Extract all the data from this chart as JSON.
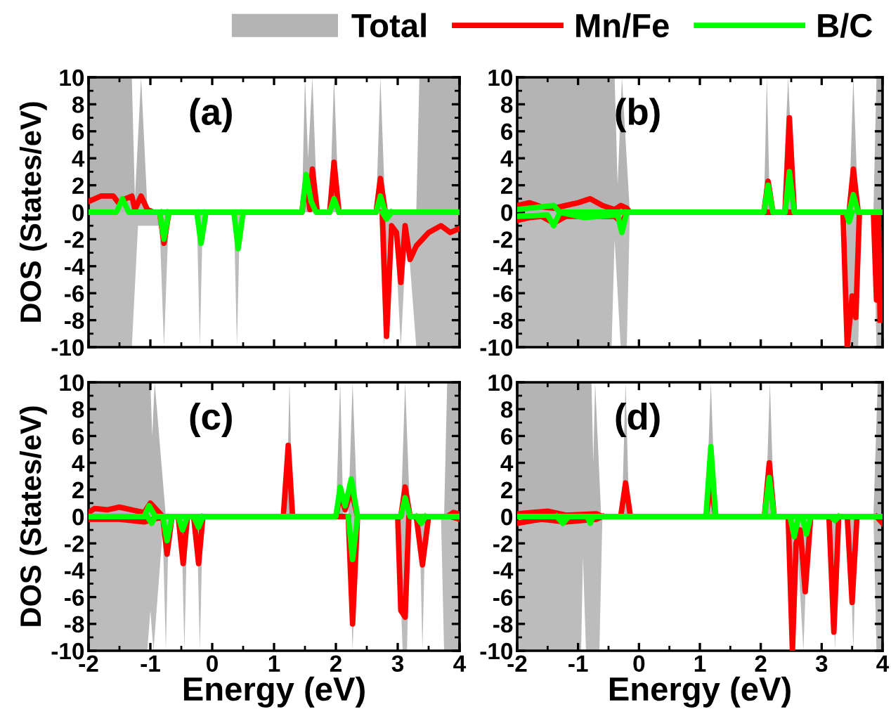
{
  "chart_data": [
    {
      "type": "line",
      "annotations": [
        "(a)"
      ],
      "ylabel": "DOS (States/eV)",
      "xlim": [
        -2,
        4
      ],
      "ylim": [
        -10,
        10
      ],
      "xticks": [
        -2,
        -1,
        0,
        1,
        2,
        3,
        4
      ],
      "yticks": [
        -10,
        -8,
        -6,
        -4,
        -2,
        0,
        2,
        4,
        6,
        8,
        10
      ],
      "tick_labels": "y",
      "legend": "top",
      "grid": false,
      "series": [
        {
          "name": "Total",
          "type": "area",
          "color": "#b4b4b4",
          "x": [
            -2,
            -1.3,
            -1.25,
            -1.15,
            -1.05,
            -0.9,
            1.45,
            1.5,
            1.55,
            1.62,
            1.7,
            1.9,
            1.97,
            2.05,
            2.65,
            2.72,
            2.8,
            3.3,
            3.35,
            4
          ],
          "values": [
            10,
            10,
            1,
            10,
            0.5,
            0,
            0,
            10,
            4,
            10,
            0,
            0,
            10,
            0,
            0,
            10,
            0,
            0,
            10,
            10
          ]
        },
        {
          "type": "area",
          "color": "#bcbcbc",
          "x": [
            -2,
            -1.3,
            -1.2,
            -1.1,
            -0.85,
            -0.78,
            -0.7,
            -0.25,
            -0.2,
            -0.15,
            0.35,
            0.4,
            0.45,
            2.7,
            2.78,
            2.85,
            2.95,
            3.05,
            3.15,
            3.3,
            4
          ],
          "values": [
            -10,
            -10,
            -1,
            -1,
            -1,
            -10,
            0,
            0,
            -10,
            0,
            0,
            -10,
            0,
            0,
            -10,
            -1,
            -1,
            -10,
            -1,
            -10,
            -10
          ]
        },
        {
          "name": "Mn/Fe",
          "color": "#ff0000",
          "x": [
            -2,
            -1.8,
            -1.6,
            -1.5,
            -1.4,
            -1.3,
            -1.25,
            -1.15,
            -1.05,
            -0.95,
            1.45,
            1.52,
            1.58,
            1.62,
            1.7,
            1.9,
            1.97,
            2.05,
            2.65,
            2.72,
            2.8,
            4
          ],
          "values": [
            0.8,
            1.2,
            1.2,
            0.6,
            1.0,
            1.2,
            0.2,
            1.2,
            0.2,
            0,
            0,
            2.5,
            0.2,
            3.2,
            0,
            0,
            3.7,
            0,
            0,
            2.5,
            0,
            0
          ]
        },
        {
          "color": "#ff0000",
          "x": [
            -0.85,
            -0.78,
            -0.7,
            1.0,
            2.75,
            2.82,
            2.9,
            2.98,
            3.05,
            3.12,
            3.2,
            3.3,
            3.5,
            3.7,
            3.85,
            4
          ],
          "values": [
            0,
            -2.3,
            0,
            null,
            0,
            -9.2,
            -1,
            -1.5,
            -5.2,
            -1,
            -3.5,
            -2.5,
            -1.5,
            -1,
            -1.5,
            -1.2
          ]
        },
        {
          "name": "B/C",
          "color": "#00ff00",
          "x": [
            -2,
            -1.55,
            -1.45,
            -1.35,
            1.45,
            1.52,
            1.6,
            1.68,
            1.9,
            1.97,
            2.05,
            2.65,
            2.72,
            2.8,
            4
          ],
          "values": [
            0,
            0,
            1.0,
            0,
            0,
            2.8,
            0.8,
            0,
            0,
            1.0,
            0,
            0,
            1.2,
            0,
            0
          ]
        },
        {
          "color": "#00ff00",
          "x": [
            -0.85,
            -0.78,
            -0.7,
            -0.5,
            -0.25,
            -0.18,
            -0.1,
            0.1,
            0.35,
            0.42,
            0.5,
            1.5,
            2.75,
            2.82,
            2.9
          ],
          "values": [
            0,
            -2.0,
            0,
            null,
            0,
            -2.3,
            0,
            null,
            0,
            -2.7,
            0,
            null,
            0,
            -0.5,
            0
          ]
        }
      ]
    },
    {
      "type": "line",
      "annotations": [
        "(b)"
      ],
      "xlim": [
        -2,
        4
      ],
      "ylim": [
        -10,
        10
      ],
      "xticks": [
        -2,
        -1,
        0,
        1,
        2,
        3,
        4
      ],
      "yticks": [
        -10,
        -8,
        -6,
        -4,
        -2,
        0,
        2,
        4,
        6,
        8,
        10
      ],
      "tick_labels": "y",
      "grid": false,
      "series": [
        {
          "type": "area",
          "color": "#b4b4b4",
          "x": [
            -2,
            -0.4,
            -0.35,
            -0.28,
            -0.15,
            2.05,
            2.1,
            2.15,
            2.35,
            2.45,
            2.55,
            3.45,
            3.52,
            3.6,
            3.85,
            3.9,
            4
          ],
          "values": [
            10,
            10,
            2,
            10,
            0,
            0,
            10,
            0,
            0,
            10,
            0,
            0,
            10,
            0,
            0,
            10,
            10
          ]
        },
        {
          "type": "area",
          "color": "#bcbcbc",
          "x": [
            -2,
            -0.45,
            -0.4,
            -0.3,
            -0.2,
            -0.15,
            3.4,
            3.45,
            3.6,
            3.65,
            3.85,
            3.9,
            4
          ],
          "values": [
            -10,
            -10,
            -2,
            -10,
            -10,
            0,
            0,
            -10,
            -10,
            0,
            0,
            -10,
            -10
          ]
        },
        {
          "color": "#ff0000",
          "x": [
            -2,
            -1.8,
            -1.6,
            -1.4,
            -1.2,
            -1.0,
            -0.8,
            -0.6,
            -0.4,
            -0.3,
            -0.2,
            -0.15,
            2.05,
            2.12,
            2.2,
            2.4,
            2.47,
            2.55,
            3.45,
            3.52,
            3.6,
            4
          ],
          "values": [
            0.5,
            0.7,
            0.4,
            0.3,
            0.5,
            0.7,
            1.0,
            0.5,
            0.2,
            0.5,
            0.3,
            0,
            0,
            2.3,
            0,
            0,
            7.0,
            0,
            0,
            3.2,
            0,
            0
          ]
        },
        {
          "color": "#ff0000",
          "x": [
            -2,
            -1.8,
            -1.6,
            -1.4,
            -1.2,
            -1.0,
            -0.8,
            -0.6,
            -0.4,
            -0.28,
            -0.2,
            1.5,
            3.35,
            3.42,
            3.5,
            3.56,
            3.62,
            3.75,
            3.85,
            3.9,
            3.93,
            3.96
          ],
          "values": [
            -0.6,
            -0.4,
            -0.3,
            -0.8,
            -0.3,
            -0.3,
            -0.2,
            -0.3,
            -0.3,
            -0.8,
            0,
            0,
            0,
            -10,
            -6.2,
            -7.8,
            0,
            0,
            0,
            -6.5,
            0,
            -8
          ]
        },
        {
          "color": "#00ff00",
          "x": [
            -2,
            -1.4,
            -1.3,
            -0.3,
            2.05,
            2.12,
            2.2,
            2.4,
            2.47,
            2.55,
            3.45,
            3.52,
            3.6,
            4
          ],
          "values": [
            0.2,
            0.5,
            0,
            0,
            0,
            2.0,
            0,
            0,
            3.0,
            0,
            0,
            1.3,
            0,
            0
          ]
        },
        {
          "color": "#00ff00",
          "x": [
            -2,
            -1.5,
            -1.4,
            -1.3,
            -0.9,
            -0.35,
            -0.28,
            -0.2,
            1.5,
            3.4,
            3.45,
            3.5
          ],
          "values": [
            -0.3,
            -0.2,
            -1.0,
            0,
            -0.4,
            -0.2,
            -1.5,
            0,
            null,
            0,
            -0.7,
            0
          ]
        }
      ]
    },
    {
      "type": "line",
      "annotations": [
        "(c)"
      ],
      "xlabel": "Energy (eV)",
      "ylabel": "DOS (States/eV)",
      "xlim": [
        -2,
        4
      ],
      "ylim": [
        -10,
        10
      ],
      "xticks": [
        -2,
        -1,
        0,
        1,
        2,
        3,
        4
      ],
      "yticks": [
        -10,
        -8,
        -6,
        -4,
        -2,
        0,
        2,
        4,
        6,
        8,
        10
      ],
      "grid": false,
      "series": [
        {
          "type": "area",
          "color": "#b4b4b4",
          "x": [
            -2,
            -1.0,
            -0.97,
            -0.93,
            -0.75,
            1.2,
            1.25,
            1.3,
            2.0,
            2.07,
            2.12,
            2.2,
            2.27,
            2.35,
            3.05,
            3.12,
            3.2,
            3.75,
            3.8,
            4
          ],
          "values": [
            10,
            10,
            6,
            10,
            0,
            0,
            10,
            0,
            0,
            10,
            0,
            0,
            10,
            0,
            0,
            10,
            0,
            0,
            10,
            10
          ]
        },
        {
          "type": "area",
          "color": "#bcbcbc",
          "x": [
            -2,
            -1.05,
            -1.0,
            -0.95,
            -0.8,
            -0.75,
            -0.7,
            -0.5,
            -0.45,
            -0.4,
            -0.25,
            -0.2,
            -0.15,
            2.2,
            2.27,
            2.35,
            3.0,
            3.08,
            3.15,
            3.2,
            3.35,
            3.4,
            3.45,
            3.7,
            3.75,
            4
          ],
          "values": [
            -10,
            -10,
            -7,
            -10,
            -1,
            -10,
            0,
            0,
            -10,
            0,
            0,
            -10,
            0,
            0,
            -10,
            0,
            0,
            -10,
            -10,
            0,
            0,
            -10,
            0,
            0,
            -10,
            -10
          ]
        },
        {
          "color": "#ff0000",
          "x": [
            -2,
            -1.9,
            -1.7,
            -1.5,
            -1.3,
            -1.1,
            -1.0,
            -0.9,
            -0.8,
            1.15,
            1.23,
            1.3,
            2.0,
            2.07,
            2.15,
            2.25,
            2.35,
            3.05,
            3.12,
            3.2,
            3.8,
            3.9,
            4
          ],
          "values": [
            0.3,
            0.6,
            0.5,
            0.7,
            0.5,
            0.3,
            1.0,
            0.5,
            0,
            0,
            5.3,
            0,
            0,
            1.7,
            0.5,
            2.0,
            0,
            0,
            2.2,
            0,
            0,
            0.3,
            0.2
          ]
        },
        {
          "color": "#ff0000",
          "x": [
            -2,
            -1.5,
            -1.1,
            -0.8,
            -0.73,
            -0.65,
            -0.55,
            -0.47,
            -0.4,
            -0.3,
            -0.22,
            -0.15,
            1.0,
            2.2,
            2.27,
            2.35,
            2.7,
            3.0,
            3.05,
            3.12,
            3.18,
            3.3,
            3.4,
            3.5,
            3.7,
            3.85,
            4
          ],
          "values": [
            -0.2,
            -0.2,
            -0.4,
            0,
            -2.8,
            0,
            0,
            -3.5,
            0,
            0,
            -3.5,
            0,
            0,
            0,
            -8.0,
            0,
            0,
            0,
            -7.0,
            -7.5,
            0,
            0,
            -3.6,
            0,
            0,
            0,
            -0.2
          ]
        },
        {
          "color": "#00ff00",
          "x": [
            -2,
            -1.1,
            -1.02,
            -0.92,
            2.0,
            2.07,
            2.15,
            2.25,
            2.35,
            3.05,
            3.12,
            3.2,
            4
          ],
          "values": [
            0,
            0,
            0.8,
            0,
            0,
            2.2,
            0.8,
            2.8,
            0,
            0,
            1.4,
            0,
            0
          ]
        },
        {
          "color": "#00ff00",
          "x": [
            -1.05,
            -0.98,
            -0.92,
            -0.8,
            -0.73,
            -0.65,
            -0.55,
            -0.48,
            -0.4,
            -0.3,
            -0.22,
            -0.15,
            1.0,
            2.2,
            2.27,
            2.35,
            2.8,
            3.3,
            3.38,
            3.45
          ],
          "values": [
            0,
            -0.5,
            0,
            0,
            -1.8,
            0,
            0,
            -1.0,
            0,
            0,
            -0.8,
            0,
            null,
            0,
            -3.2,
            0,
            null,
            0,
            -0.5,
            0
          ]
        }
      ]
    },
    {
      "type": "line",
      "annotations": [
        "(d)"
      ],
      "xlabel": "Energy (eV)",
      "xlim": [
        -2,
        4
      ],
      "ylim": [
        -10,
        10
      ],
      "xticks": [
        -2,
        -1,
        0,
        1,
        2,
        3,
        4
      ],
      "yticks": [
        -10,
        -8,
        -6,
        -4,
        -2,
        0,
        2,
        4,
        6,
        8,
        10
      ],
      "grid": false,
      "series": [
        {
          "type": "area",
          "color": "#b4b4b4",
          "x": [
            -2,
            -0.78,
            -0.75,
            -0.72,
            -0.62,
            -0.28,
            -0.22,
            -0.16,
            1.1,
            1.18,
            1.26,
            2.08,
            2.15,
            2.22,
            3.85,
            3.92,
            4
          ],
          "values": [
            10,
            10,
            4,
            10,
            0,
            0,
            10,
            0,
            0,
            10,
            0,
            0,
            10,
            0,
            0,
            10,
            10
          ]
        },
        {
          "type": "area",
          "color": "#bcbcbc",
          "x": [
            -2,
            -0.95,
            -0.92,
            -0.87,
            -0.65,
            -0.6,
            2.45,
            2.52,
            2.6,
            2.7,
            2.78,
            3.15,
            3.22,
            3.28,
            3.45,
            3.52,
            3.58,
            3.85,
            3.9,
            4
          ],
          "values": [
            -10,
            -10,
            -3,
            -10,
            -10,
            0,
            0,
            -10,
            -2,
            -10,
            0,
            0,
            -10,
            0,
            0,
            -10,
            0,
            0,
            -10,
            -10
          ]
        },
        {
          "color": "#ff0000",
          "x": [
            -2,
            -1.5,
            -1.2,
            -0.7,
            -0.6,
            -0.3,
            -0.22,
            -0.14,
            1.1,
            1.18,
            1.26,
            2.06,
            2.14,
            2.22,
            4
          ],
          "values": [
            0.2,
            0.4,
            0.1,
            0.2,
            0,
            0,
            2.5,
            0,
            0,
            2.5,
            0,
            0,
            4.0,
            0,
            0
          ]
        },
        {
          "color": "#ff0000",
          "x": [
            -2,
            -1.6,
            -1.2,
            -0.7,
            -0.6,
            1.0,
            2.45,
            2.52,
            2.58,
            2.65,
            2.73,
            2.82,
            3.12,
            3.2,
            3.28,
            3.42,
            3.5,
            3.58,
            3.75,
            3.9,
            4
          ],
          "values": [
            -0.5,
            -0.2,
            -0.4,
            -0.2,
            0,
            null,
            0,
            -10,
            -2,
            -1,
            -5.6,
            0,
            0,
            -8.6,
            0,
            0,
            -6.4,
            0,
            null,
            0,
            -0.5
          ]
        },
        {
          "color": "#00ff00",
          "x": [
            -2,
            1.1,
            1.18,
            1.26,
            2.06,
            2.14,
            2.22,
            4
          ],
          "values": [
            0,
            0,
            5.2,
            0,
            0,
            2.9,
            0,
            0
          ]
        },
        {
          "color": "#00ff00",
          "x": [
            -1.35,
            -1.25,
            -1.15,
            -1.0,
            -0.85,
            -0.8,
            -0.75,
            1.0,
            2.48,
            2.55,
            2.62,
            2.68,
            2.75,
            2.82,
            3.0,
            3.15,
            3.22,
            3.28
          ],
          "values": [
            0,
            -0.5,
            0,
            0,
            0,
            -0.5,
            0,
            0,
            0,
            -1.5,
            0,
            0,
            -1.3,
            0,
            0,
            0,
            -0.3,
            0
          ]
        }
      ]
    }
  ]
}
